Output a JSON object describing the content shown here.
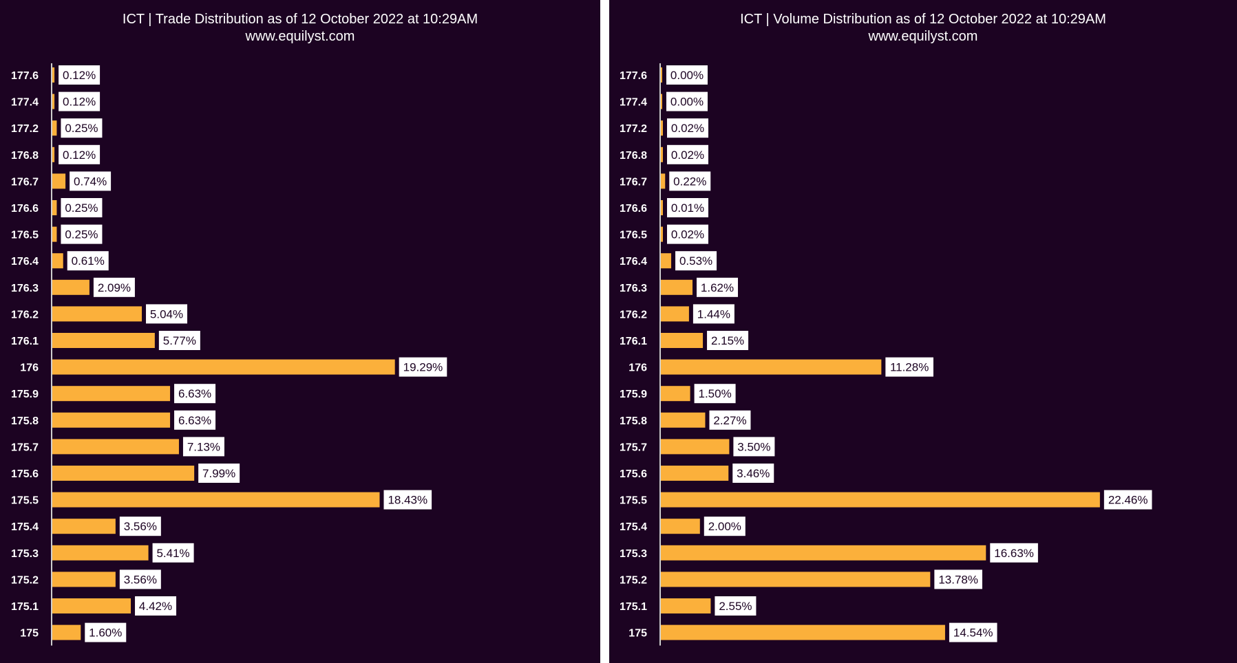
{
  "colors": {
    "background": "#1c0322",
    "bar": "#fbb03b",
    "label_box": "#ffffff",
    "text": "#ffffff"
  },
  "chart_data": [
    {
      "type": "bar",
      "orientation": "horizontal",
      "title": "ICT | Trade Distribution as of 12 October 2022 at 10:29AM",
      "subtitle": "www.equilyst.com",
      "categories": [
        "177.6",
        "177.4",
        "177.2",
        "176.8",
        "176.7",
        "176.6",
        "176.5",
        "176.4",
        "176.3",
        "176.2",
        "176.1",
        "176",
        "175.9",
        "175.8",
        "175.7",
        "175.6",
        "175.5",
        "175.4",
        "175.3",
        "175.2",
        "175.1",
        "175"
      ],
      "values": [
        0.12,
        0.12,
        0.25,
        0.12,
        0.74,
        0.25,
        0.25,
        0.61,
        2.09,
        5.04,
        5.77,
        19.29,
        6.63,
        6.63,
        7.13,
        7.99,
        18.43,
        3.56,
        5.41,
        3.56,
        4.42,
        1.6
      ],
      "labels": [
        "0.12%",
        "0.12%",
        "0.25%",
        "0.12%",
        "0.74%",
        "0.25%",
        "0.25%",
        "0.61%",
        "2.09%",
        "5.04%",
        "5.77%",
        "19.29%",
        "6.63%",
        "6.63%",
        "7.13%",
        "7.99%",
        "18.43%",
        "3.56%",
        "5.41%",
        "3.56%",
        "4.42%",
        "1.60%"
      ],
      "xlabel": "",
      "ylabel": "",
      "grid": false,
      "legend": "none"
    },
    {
      "type": "bar",
      "orientation": "horizontal",
      "title": "ICT | Volume Distribution as of 12 October 2022 at 10:29AM",
      "subtitle": "www.equilyst.com",
      "categories": [
        "177.6",
        "177.4",
        "177.2",
        "176.8",
        "176.7",
        "176.6",
        "176.5",
        "176.4",
        "176.3",
        "176.2",
        "176.1",
        "176",
        "175.9",
        "175.8",
        "175.7",
        "175.6",
        "175.5",
        "175.4",
        "175.3",
        "175.2",
        "175.1",
        "175"
      ],
      "values": [
        0.0,
        0.0,
        0.02,
        0.02,
        0.22,
        0.01,
        0.02,
        0.53,
        1.62,
        1.44,
        2.15,
        11.28,
        1.5,
        2.27,
        3.5,
        3.46,
        22.46,
        2.0,
        16.63,
        13.78,
        2.55,
        14.54
      ],
      "labels": [
        "0.00%",
        "0.00%",
        "0.02%",
        "0.02%",
        "0.22%",
        "0.01%",
        "0.02%",
        "0.53%",
        "1.62%",
        "1.44%",
        "2.15%",
        "11.28%",
        "1.50%",
        "2.27%",
        "3.50%",
        "3.46%",
        "22.46%",
        "2.00%",
        "16.63%",
        "13.78%",
        "2.55%",
        "14.54%"
      ],
      "xlabel": "",
      "ylabel": "",
      "grid": false,
      "legend": "none"
    }
  ]
}
